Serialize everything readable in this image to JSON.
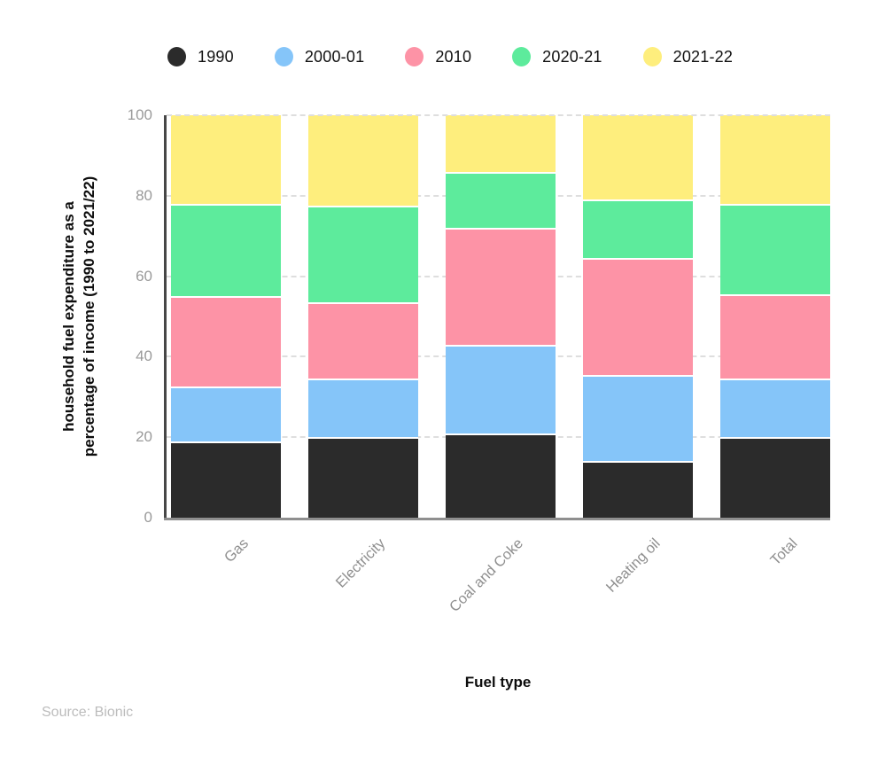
{
  "chart_data": {
    "type": "bar",
    "stacked": true,
    "normalized_to_100": true,
    "categories": [
      "Gas",
      "Electricity",
      "Coal and Coke",
      "Heating oil",
      "Total"
    ],
    "series": [
      {
        "name": "1990",
        "color": "#2b2b2b",
        "values": [
          19,
          20,
          21,
          14,
          20
        ]
      },
      {
        "name": "2000-01",
        "color": "#85c5f9",
        "values": [
          13.5,
          14.5,
          22,
          21.5,
          14.5
        ]
      },
      {
        "name": "2010",
        "color": "#fd93a6",
        "values": [
          22.5,
          19,
          29,
          29,
          21
        ]
      },
      {
        "name": "2020-21",
        "color": "#5deb9c",
        "values": [
          23,
          24,
          14,
          14.5,
          22.5
        ]
      },
      {
        "name": "2021-22",
        "color": "#feee7d",
        "values": [
          22,
          22.5,
          14,
          21,
          22
        ]
      }
    ],
    "stack_totals": [
      100,
      100,
      100,
      100,
      100
    ],
    "xlabel": "Fuel type",
    "ylabel": "household fuel expenditure as a percentage of income (1990 to 2021/22)",
    "ylabel_lines": [
      "household fuel expenditure as a",
      "percentage of income (1990 to 2021/22)"
    ],
    "ylim": [
      0,
      100
    ],
    "yticks": [
      0,
      20,
      40,
      60,
      80,
      100
    ],
    "grid": "horizontal-dashed",
    "legend_position": "top"
  },
  "source": {
    "label": "Source: Bionic"
  },
  "colors": {
    "background": "#ffffff",
    "grid": "#dedede",
    "axis_left": "#474747",
    "axis_bottom": "#8f8f8f",
    "tick_text": "#9a9a9a",
    "category_text": "#8f8f8f",
    "title_text": "#0d0d0d",
    "source_text": "#bcbcbc",
    "segment_divider": "#ffffff"
  }
}
